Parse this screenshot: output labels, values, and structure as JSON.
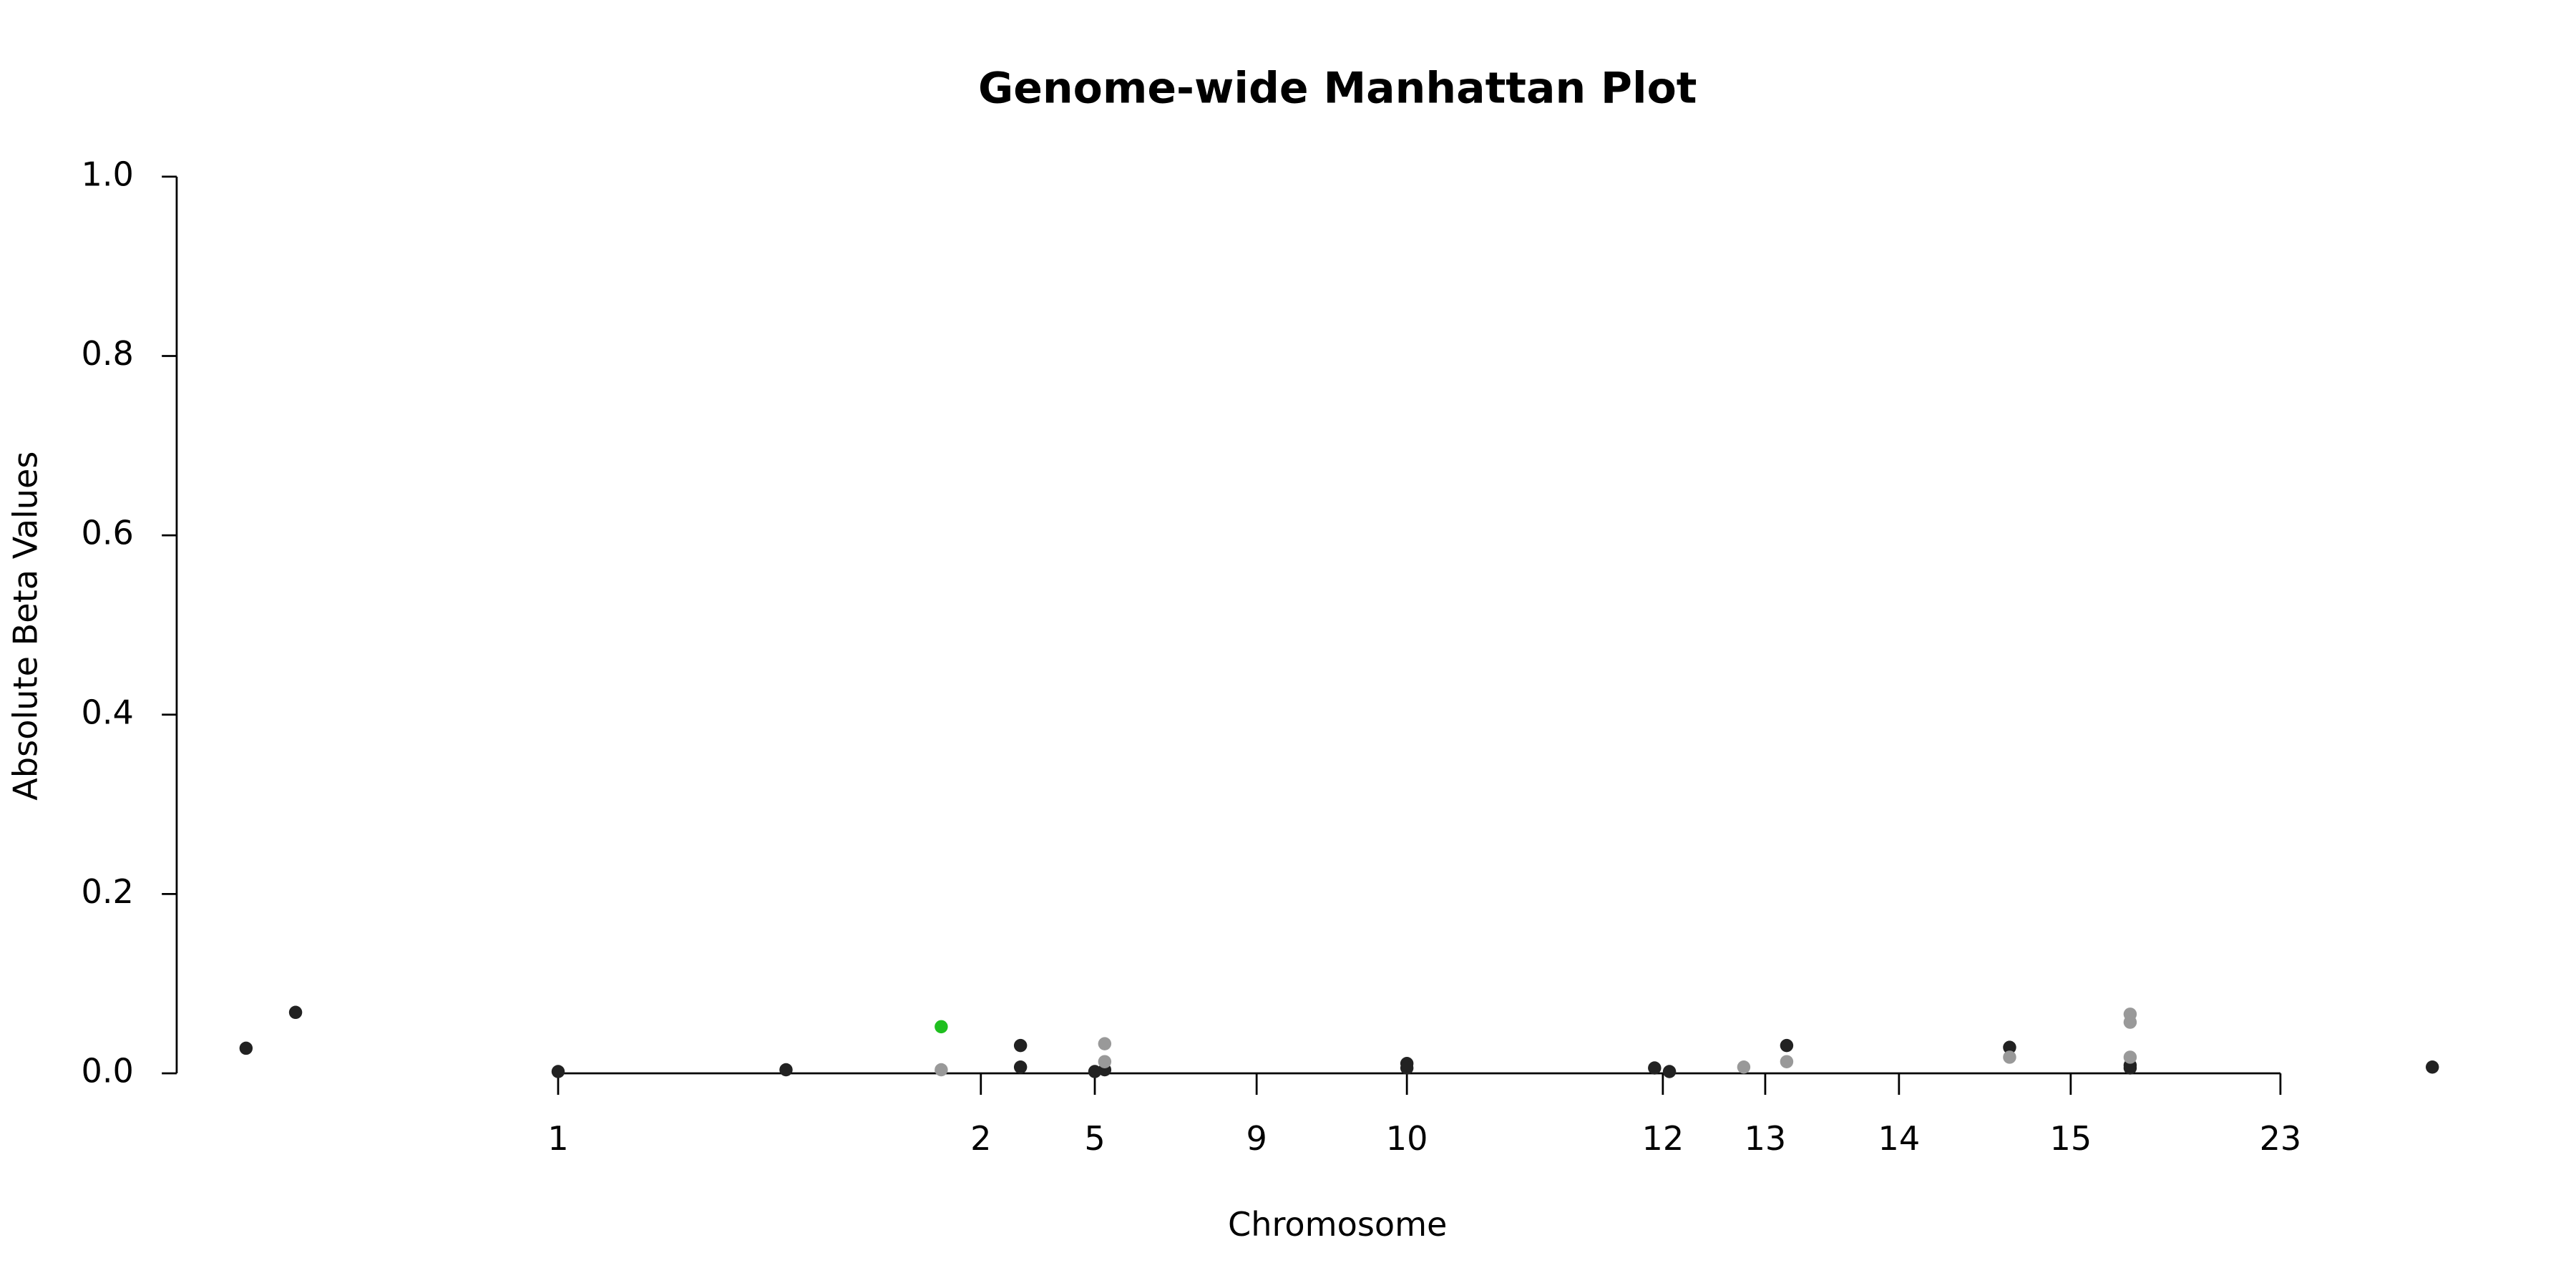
{
  "chart_data": {
    "type": "scatter",
    "title": "Genome-wide Manhattan Plot",
    "x_label": "Chromosome",
    "y_label": "Absolute Beta Values",
    "xlim": [
      0,
      1393
    ],
    "ylim": [
      0,
      1.0
    ],
    "xticks": [
      {
        "value": 231,
        "label": "1"
      },
      {
        "value": 487,
        "label": "2"
      },
      {
        "value": 556,
        "label": "5"
      },
      {
        "value": 654,
        "label": "9"
      },
      {
        "value": 745,
        "label": "10"
      },
      {
        "value": 900,
        "label": "12"
      },
      {
        "value": 962,
        "label": "13"
      },
      {
        "value": 1043,
        "label": "14"
      },
      {
        "value": 1147,
        "label": "15"
      },
      {
        "value": 1274,
        "label": "23"
      }
    ],
    "yticks": [
      {
        "value": 0,
        "label": "0.0"
      },
      {
        "value": 0.2,
        "label": "0.2"
      },
      {
        "value": 0.4,
        "label": "0.4"
      },
      {
        "value": 0.6,
        "label": "0.6"
      },
      {
        "value": 0.8,
        "label": "0.8"
      },
      {
        "value": 1.0,
        "label": "1.0"
      }
    ],
    "series": [
      {
        "color": "#222222",
        "x": [
          42,
          72,
          231,
          369,
          511,
          511,
          556,
          562,
          745,
          745,
          895,
          904,
          975,
          1110,
          1183,
          1183,
          1366
        ],
        "values": [
          0.028,
          0.068,
          0.002,
          0.004,
          0.031,
          0.007,
          0.002,
          0.004,
          0.011,
          0.006,
          0.006,
          0.002,
          0.031,
          0.029,
          0.009,
          0.006,
          0.007
        ]
      },
      {
        "color": "#999999",
        "x": [
          463,
          562,
          562,
          949,
          975,
          1110,
          1183,
          1183,
          1183
        ],
        "values": [
          0.004,
          0.033,
          0.013,
          0.007,
          0.013,
          0.018,
          0.066,
          0.057,
          0.018
        ]
      },
      {
        "color": "#1fbf1f",
        "x": [
          463
        ],
        "values": [
          0.052
        ]
      }
    ]
  }
}
